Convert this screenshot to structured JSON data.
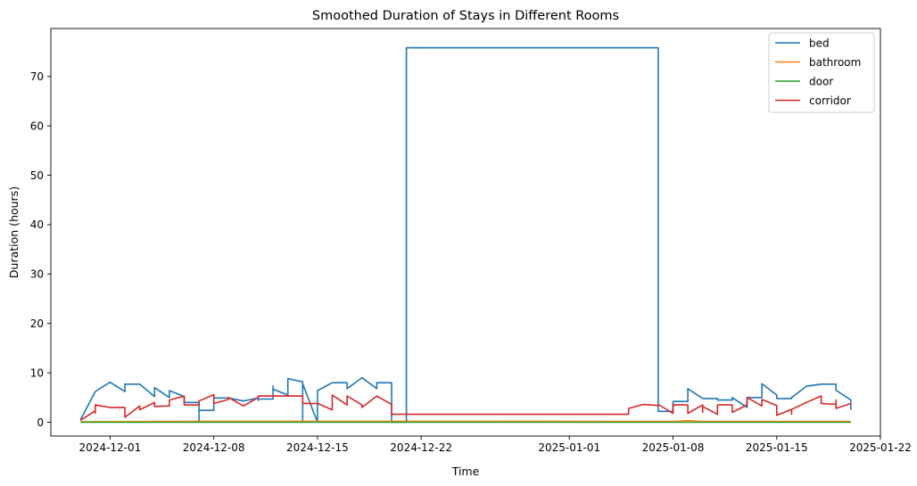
{
  "chart_data": {
    "type": "line",
    "title": "Smoothed Duration of Stays in Different Rooms",
    "xlabel": "Time",
    "ylabel": "Duration (hours)",
    "xlim": [
      "2024-11-27",
      "2025-01-22"
    ],
    "ylim": [
      -2.8,
      79.7
    ],
    "xticks": [
      "2024-12-01",
      "2024-12-08",
      "2024-12-15",
      "2024-12-22",
      "2025-01-01",
      "2025-01-08",
      "2025-01-15",
      "2025-01-22"
    ],
    "yticks": [
      0,
      10,
      20,
      30,
      40,
      50,
      60,
      70
    ],
    "grid": false,
    "legend": "top-right",
    "series": [
      {
        "name": "bed",
        "color": "#1f77b4",
        "points": [
          [
            "2024-11-29",
            0.5
          ],
          [
            "2024-11-30",
            6.2
          ],
          [
            "2024-12-01",
            8.1
          ],
          [
            "2024-12-02",
            6.2
          ],
          [
            "2024-12-02",
            7.7
          ],
          [
            "2024-12-03",
            7.7
          ],
          [
            "2024-12-04",
            5.2
          ],
          [
            "2024-12-04",
            7.0
          ],
          [
            "2024-12-05",
            5.0
          ],
          [
            "2024-12-05",
            6.4
          ],
          [
            "2024-12-06",
            5.2
          ],
          [
            "2024-12-06",
            4.0
          ],
          [
            "2024-12-07",
            4.0
          ],
          [
            "2024-12-07",
            0.0
          ],
          [
            "2024-12-07",
            2.4
          ],
          [
            "2024-12-08",
            2.4
          ],
          [
            "2024-12-08",
            4.9
          ],
          [
            "2024-12-09",
            4.9
          ],
          [
            "2024-12-10",
            4.3
          ],
          [
            "2024-12-11",
            4.9
          ],
          [
            "2024-12-11",
            4.4
          ],
          [
            "2024-12-11",
            4.7
          ],
          [
            "2024-12-12",
            4.7
          ],
          [
            "2024-12-12",
            7.3
          ],
          [
            "2024-12-12",
            6.7
          ],
          [
            "2024-12-13",
            5.5
          ],
          [
            "2024-12-13",
            8.8
          ],
          [
            "2024-12-14",
            8.2
          ],
          [
            "2024-12-14",
            7.8
          ],
          [
            "2024-12-14",
            0.0
          ],
          [
            "2024-12-14",
            7.8
          ],
          [
            "2024-12-15",
            0.0
          ],
          [
            "2024-12-15",
            3.5
          ],
          [
            "2024-12-15",
            6.4
          ],
          [
            "2024-12-16",
            8.0
          ],
          [
            "2024-12-17",
            8.0
          ],
          [
            "2024-12-17",
            6.8
          ],
          [
            "2024-12-18",
            9.0
          ],
          [
            "2024-12-19",
            6.8
          ],
          [
            "2024-12-19",
            8.0
          ],
          [
            "2024-12-20",
            8.0
          ],
          [
            "2024-12-20",
            4.3
          ],
          [
            "2024-12-20",
            0.0
          ],
          [
            "2024-12-21",
            0.0
          ],
          [
            "2024-12-21",
            75.8
          ],
          [
            "2025-01-06",
            75.8
          ],
          [
            "2025-01-07",
            75.8
          ],
          [
            "2025-01-07",
            2.2
          ],
          [
            "2025-01-08",
            2.2
          ],
          [
            "2025-01-08",
            4.2
          ],
          [
            "2025-01-09",
            4.2
          ],
          [
            "2025-01-09",
            6.8
          ],
          [
            "2025-01-10",
            4.8
          ],
          [
            "2025-01-11",
            4.8
          ],
          [
            "2025-01-11",
            4.5
          ],
          [
            "2025-01-12",
            4.5
          ],
          [
            "2025-01-12",
            5.0
          ],
          [
            "2025-01-13",
            3.0
          ],
          [
            "2025-01-13",
            5.0
          ],
          [
            "2025-01-14",
            5.0
          ],
          [
            "2025-01-14",
            7.8
          ],
          [
            "2025-01-15",
            5.5
          ],
          [
            "2025-01-15",
            4.8
          ],
          [
            "2025-01-16",
            4.8
          ],
          [
            "2025-01-16",
            5.0
          ],
          [
            "2025-01-17",
            7.3
          ],
          [
            "2025-01-18",
            7.7
          ],
          [
            "2025-01-19",
            7.7
          ],
          [
            "2025-01-19",
            6.5
          ],
          [
            "2025-01-20",
            4.5
          ],
          [
            "2025-01-20",
            2.5
          ]
        ]
      },
      {
        "name": "bathroom",
        "color": "#ff7f0e",
        "points": [
          [
            "2024-11-29",
            0.1
          ],
          [
            "2024-12-05",
            0.15
          ],
          [
            "2024-12-08",
            0.2
          ],
          [
            "2024-12-20",
            0.2
          ],
          [
            "2025-01-08",
            0.15
          ],
          [
            "2025-01-09",
            0.3
          ],
          [
            "2025-01-10",
            0.15
          ],
          [
            "2025-01-20",
            0.15
          ]
        ]
      },
      {
        "name": "door",
        "color": "#2ca02c",
        "points": [
          [
            "2024-11-29",
            0.0
          ],
          [
            "2025-01-20",
            0.0
          ]
        ]
      },
      {
        "name": "corridor",
        "color": "#d62728",
        "points": [
          [
            "2024-11-29",
            0.4
          ],
          [
            "2024-11-30",
            2.3
          ],
          [
            "2024-11-30",
            1.8
          ],
          [
            "2024-11-30",
            3.5
          ],
          [
            "2024-12-01",
            3.0
          ],
          [
            "2024-12-02",
            3.0
          ],
          [
            "2024-12-02",
            2.3
          ],
          [
            "2024-12-02",
            1.0
          ],
          [
            "2024-12-03",
            3.3
          ],
          [
            "2024-12-03",
            2.5
          ],
          [
            "2024-12-04",
            4.0
          ],
          [
            "2024-12-04",
            3.2
          ],
          [
            "2024-12-05",
            3.3
          ],
          [
            "2024-12-05",
            4.5
          ],
          [
            "2024-12-06",
            5.3
          ],
          [
            "2024-12-06",
            3.5
          ],
          [
            "2024-12-07",
            3.5
          ],
          [
            "2024-12-07",
            4.3
          ],
          [
            "2024-12-08",
            5.6
          ],
          [
            "2024-12-08",
            3.8
          ],
          [
            "2024-12-09",
            4.6
          ],
          [
            "2024-12-09",
            5.0
          ],
          [
            "2024-12-10",
            3.3
          ],
          [
            "2024-12-11",
            5.0
          ],
          [
            "2024-12-11",
            5.3
          ],
          [
            "2024-12-14",
            5.3
          ],
          [
            "2024-12-14",
            3.8
          ],
          [
            "2024-12-15",
            3.8
          ],
          [
            "2024-12-16",
            2.5
          ],
          [
            "2024-12-16",
            3.5
          ],
          [
            "2024-12-16",
            5.5
          ],
          [
            "2024-12-17",
            3.5
          ],
          [
            "2024-12-17",
            3.5
          ],
          [
            "2024-12-17",
            5.3
          ],
          [
            "2024-12-18",
            3.5
          ],
          [
            "2024-12-18",
            3.0
          ],
          [
            "2024-12-19",
            5.3
          ],
          [
            "2024-12-20",
            3.6
          ],
          [
            "2024-12-20",
            3.6
          ],
          [
            "2024-12-20",
            1.6
          ],
          [
            "2025-01-05",
            1.6
          ],
          [
            "2025-01-05",
            2.8
          ],
          [
            "2025-01-06",
            3.6
          ],
          [
            "2025-01-07",
            3.4
          ],
          [
            "2025-01-07",
            3.6
          ],
          [
            "2025-01-08",
            1.8
          ],
          [
            "2025-01-08",
            1.8
          ],
          [
            "2025-01-08",
            3.5
          ],
          [
            "2025-01-09",
            3.5
          ],
          [
            "2025-01-09",
            1.8
          ],
          [
            "2025-01-09",
            1.8
          ],
          [
            "2025-01-10",
            3.5
          ],
          [
            "2025-01-10",
            2.0
          ],
          [
            "2025-01-10",
            3.2
          ],
          [
            "2025-01-11",
            1.6
          ],
          [
            "2025-01-11",
            3.5
          ],
          [
            "2025-01-12",
            3.5
          ],
          [
            "2025-01-12",
            2.0
          ],
          [
            "2025-01-13",
            3.5
          ],
          [
            "2025-01-13",
            5.0
          ],
          [
            "2025-01-14",
            3.3
          ],
          [
            "2025-01-14",
            4.6
          ],
          [
            "2025-01-15",
            3.4
          ],
          [
            "2025-01-15",
            1.4
          ],
          [
            "2025-01-15",
            1.4
          ],
          [
            "2025-01-16",
            2.6
          ],
          [
            "2025-01-16",
            1.6
          ],
          [
            "2025-01-16",
            2.6
          ],
          [
            "2025-01-17",
            4.0
          ],
          [
            "2025-01-18",
            5.3
          ],
          [
            "2025-01-18",
            3.8
          ],
          [
            "2025-01-19",
            3.6
          ],
          [
            "2025-01-19",
            4.5
          ],
          [
            "2025-01-19",
            2.8
          ],
          [
            "2025-01-20",
            3.8
          ],
          [
            "2025-01-20",
            3.8
          ]
        ]
      }
    ]
  }
}
